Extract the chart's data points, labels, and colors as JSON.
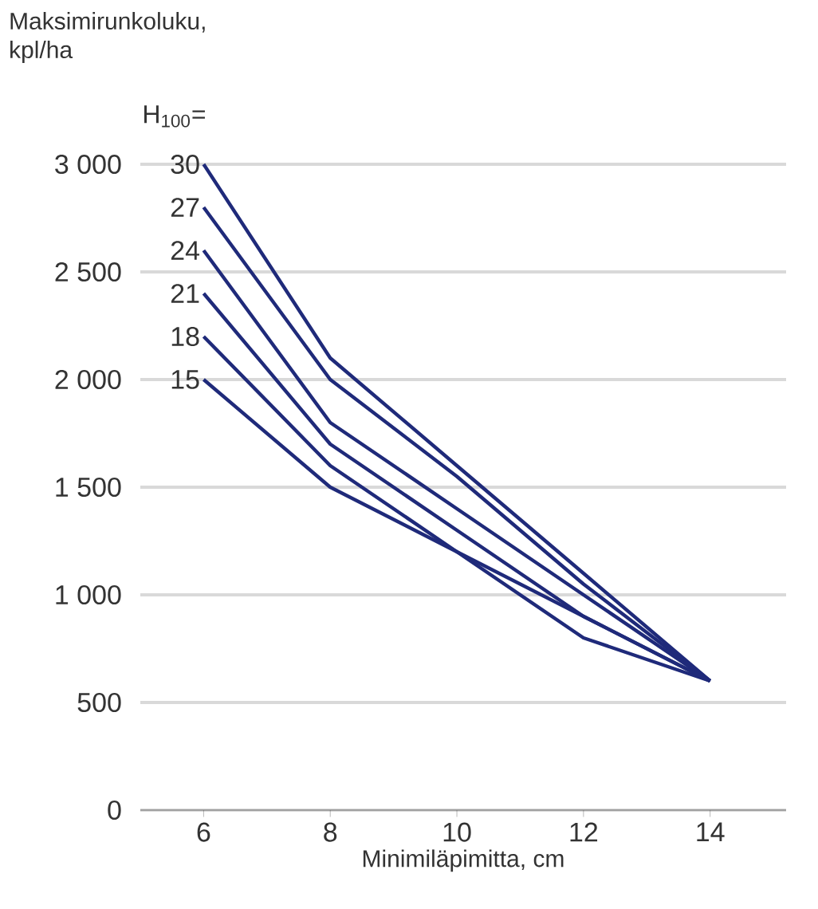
{
  "chart_data": {
    "type": "line",
    "ylabel": "Maksimirunkoluku, kpl/ha",
    "xlabel": "Minimiläpimitta, cm",
    "legend_title": "H$_{100}$=",
    "x": [
      6,
      8,
      10,
      12,
      14
    ],
    "series": [
      {
        "name": "30",
        "color": "#1f2a7a",
        "values": [
          3000,
          2100,
          1600,
          1100,
          600
        ]
      },
      {
        "name": "27",
        "color": "#1f2a7a",
        "values": [
          2800,
          2000,
          1550,
          1050,
          600
        ]
      },
      {
        "name": "24",
        "color": "#1f2a7a",
        "values": [
          2600,
          1800,
          1400,
          1000,
          600
        ]
      },
      {
        "name": "21",
        "color": "#1f2a7a",
        "values": [
          2400,
          1700,
          1300,
          900,
          600
        ]
      },
      {
        "name": "18",
        "color": "#1f2a7a",
        "values": [
          2200,
          1600,
          1200,
          800,
          600
        ]
      },
      {
        "name": "15",
        "color": "#1f2a7a",
        "values": [
          2000,
          1500,
          1200,
          900,
          600
        ]
      }
    ],
    "xlim": [
      5,
      15.2
    ],
    "ylim": [
      0,
      3000
    ],
    "xticks": [
      6,
      8,
      10,
      12,
      14
    ],
    "yticks": [
      {
        "value": 0,
        "label": "0"
      },
      {
        "value": 500,
        "label": "500"
      },
      {
        "value": 1000,
        "label": "1 000"
      },
      {
        "value": 1500,
        "label": "1 500"
      },
      {
        "value": 2000,
        "label": "2 000"
      },
      {
        "value": 2500,
        "label": "2 500"
      },
      {
        "value": 3000,
        "label": "3 000"
      }
    ],
    "grid": "y",
    "legend": "left",
    "marker": "none",
    "line_style": "solid"
  }
}
